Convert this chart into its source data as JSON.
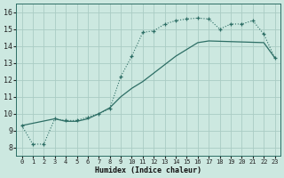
{
  "title": "",
  "xlabel": "Humidex (Indice chaleur)",
  "ylabel": "",
  "background_color": "#cce8e0",
  "line_color": "#2d6e65",
  "grid_color": "#aaccc4",
  "xlim": [
    -0.5,
    23.5
  ],
  "ylim": [
    7.5,
    16.5
  ],
  "xticks": [
    0,
    1,
    2,
    3,
    4,
    5,
    6,
    7,
    8,
    9,
    10,
    11,
    12,
    13,
    14,
    15,
    16,
    17,
    18,
    19,
    20,
    21,
    22,
    23
  ],
  "yticks": [
    8,
    9,
    10,
    11,
    12,
    13,
    14,
    15,
    16
  ],
  "series1_x": [
    0,
    1,
    2,
    3,
    4,
    5,
    6,
    7,
    8,
    9,
    10,
    11,
    12,
    13,
    14,
    15,
    16,
    17,
    18,
    19,
    20,
    21,
    22,
    23
  ],
  "series1_y": [
    9.3,
    8.2,
    8.2,
    9.7,
    9.6,
    9.6,
    9.8,
    10.0,
    10.3,
    12.2,
    13.4,
    14.8,
    14.9,
    15.3,
    15.5,
    15.6,
    15.65,
    15.6,
    15.0,
    15.3,
    15.3,
    15.5,
    14.7,
    13.3
  ],
  "series2_x": [
    0,
    3,
    4,
    5,
    6,
    7,
    8,
    9,
    10,
    11,
    12,
    13,
    14,
    15,
    16,
    17,
    22,
    23
  ],
  "series2_y": [
    9.3,
    9.7,
    9.55,
    9.55,
    9.7,
    10.0,
    10.35,
    11.0,
    11.5,
    11.9,
    12.4,
    12.9,
    13.4,
    13.8,
    14.2,
    14.3,
    14.2,
    13.3
  ]
}
